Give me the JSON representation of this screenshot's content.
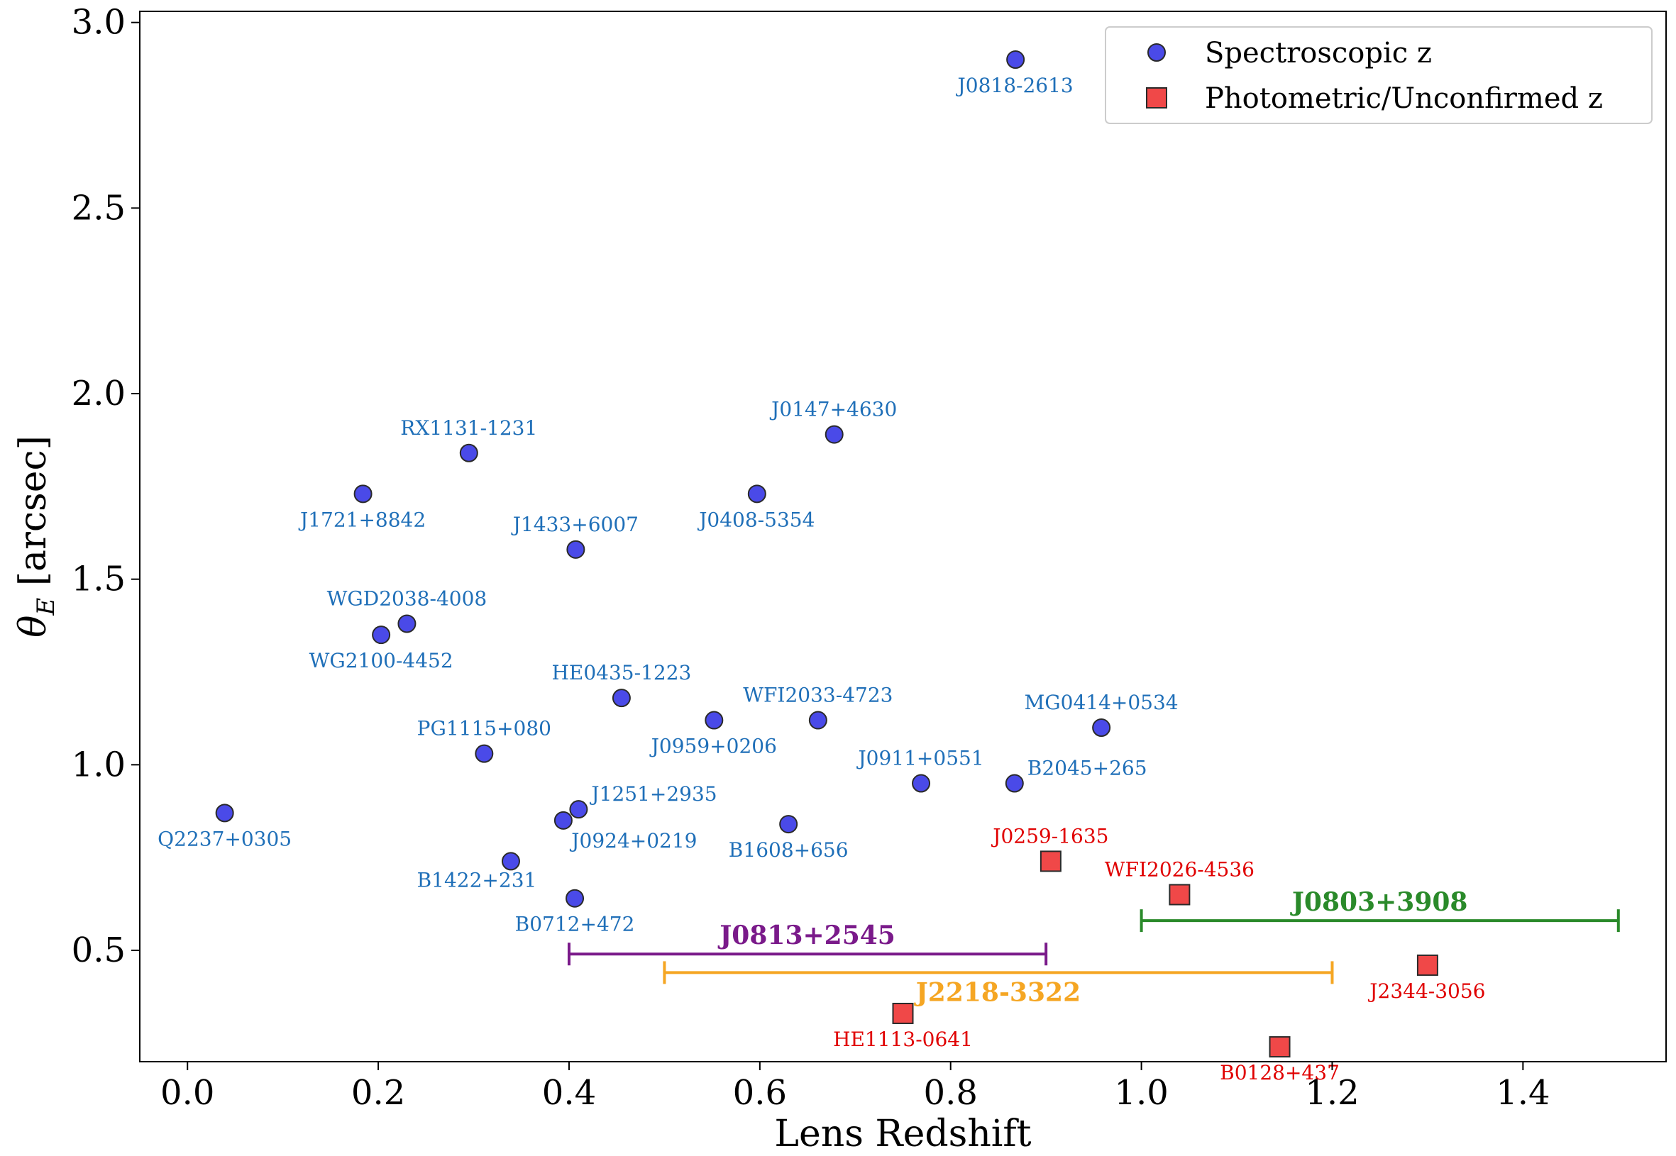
{
  "chart_data": {
    "type": "scatter",
    "title": "",
    "xlabel": "Lens Redshift",
    "ylabel_main": "θ",
    "ylabel_sub": "E",
    "ylabel_unit": " [arcsec]",
    "xlim": [
      -0.05,
      1.55
    ],
    "ylim": [
      0.2,
      3.03
    ],
    "xticks": [
      0.0,
      0.2,
      0.4,
      0.6,
      0.8,
      1.0,
      1.2,
      1.4
    ],
    "xtick_labels": [
      "0.0",
      "0.2",
      "0.4",
      "0.6",
      "0.8",
      "1.0",
      "1.2",
      "1.4"
    ],
    "yticks": [
      0.5,
      1.0,
      1.5,
      2.0,
      2.5,
      3.0
    ],
    "ytick_labels": [
      "0.5",
      "1.0",
      "1.5",
      "2.0",
      "2.5",
      "3.0"
    ],
    "grid": false,
    "legend_position": "top-right",
    "colors": {
      "spec_fill": "#4a4ae8",
      "spec_label": "#1f6fb8",
      "phot_fill": "#f04848",
      "phot_label": "#e00000",
      "edge": "#2a2a2a"
    },
    "series": [
      {
        "name": "Spectroscopic z",
        "marker": "circle",
        "points": [
          {
            "label": "J0818-2613",
            "x": 0.868,
            "y": 2.9,
            "pos": "below"
          },
          {
            "label": "J0147+4630",
            "x": 0.678,
            "y": 1.89,
            "pos": "above"
          },
          {
            "label": "RX1131-1231",
            "x": 0.295,
            "y": 1.84,
            "pos": "above"
          },
          {
            "label": "J1721+8842",
            "x": 0.184,
            "y": 1.73,
            "pos": "below"
          },
          {
            "label": "J0408-5354",
            "x": 0.597,
            "y": 1.73,
            "pos": "below"
          },
          {
            "label": "J1433+6007",
            "x": 0.407,
            "y": 1.58,
            "pos": "above"
          },
          {
            "label": "WGD2038-4008",
            "x": 0.23,
            "y": 1.38,
            "pos": "above"
          },
          {
            "label": "WG2100-4452",
            "x": 0.203,
            "y": 1.35,
            "pos": "below"
          },
          {
            "label": "HE0435-1223",
            "x": 0.455,
            "y": 1.18,
            "pos": "above"
          },
          {
            "label": "J0959+0206",
            "x": 0.552,
            "y": 1.12,
            "pos": "below"
          },
          {
            "label": "WFI2033-4723",
            "x": 0.661,
            "y": 1.12,
            "pos": "above"
          },
          {
            "label": "MG0414+0534",
            "x": 0.958,
            "y": 1.1,
            "pos": "above"
          },
          {
            "label": "PG1115+080",
            "x": 0.311,
            "y": 1.03,
            "pos": "above"
          },
          {
            "label": "J0911+0551",
            "x": 0.769,
            "y": 0.95,
            "pos": "above"
          },
          {
            "label": "B2045+265",
            "x": 0.867,
            "y": 0.95,
            "pos": "right-above"
          },
          {
            "label": "Q2237+0305",
            "x": 0.039,
            "y": 0.87,
            "pos": "below"
          },
          {
            "label": "J1251+2935",
            "x": 0.41,
            "y": 0.88,
            "pos": "right-above"
          },
          {
            "label": "J0924+0219",
            "x": 0.394,
            "y": 0.85,
            "pos": "below-right"
          },
          {
            "label": "B1608+656",
            "x": 0.63,
            "y": 0.84,
            "pos": "below"
          },
          {
            "label": "B1422+231",
            "x": 0.339,
            "y": 0.74,
            "pos": "below-left"
          },
          {
            "label": "B0712+472",
            "x": 0.406,
            "y": 0.64,
            "pos": "below"
          }
        ]
      },
      {
        "name": "Photometric/Unconfirmed z",
        "marker": "square",
        "points": [
          {
            "label": "J0259-1635",
            "x": 0.905,
            "y": 0.74,
            "pos": "above"
          },
          {
            "label": "WFI2026-4536",
            "x": 1.04,
            "y": 0.65,
            "pos": "above"
          },
          {
            "label": "J2344-3056",
            "x": 1.3,
            "y": 0.46,
            "pos": "below"
          },
          {
            "label": "HE1113-0641",
            "x": 0.75,
            "y": 0.33,
            "pos": "below"
          },
          {
            "label": "B0128+437",
            "x": 1.145,
            "y": 0.24,
            "pos": "below"
          }
        ]
      }
    ],
    "ranges": [
      {
        "label": "J0803+3908",
        "x0": 1.0,
        "x1": 1.5,
        "y": 0.58,
        "color": "#2a8a2a"
      },
      {
        "label": "J0813+2545",
        "x0": 0.4,
        "x1": 0.9,
        "y": 0.49,
        "color": "#7a1a8a"
      },
      {
        "label": "J2218-3322",
        "x0": 0.5,
        "x1": 1.2,
        "y": 0.44,
        "color": "#f5a623"
      }
    ]
  }
}
